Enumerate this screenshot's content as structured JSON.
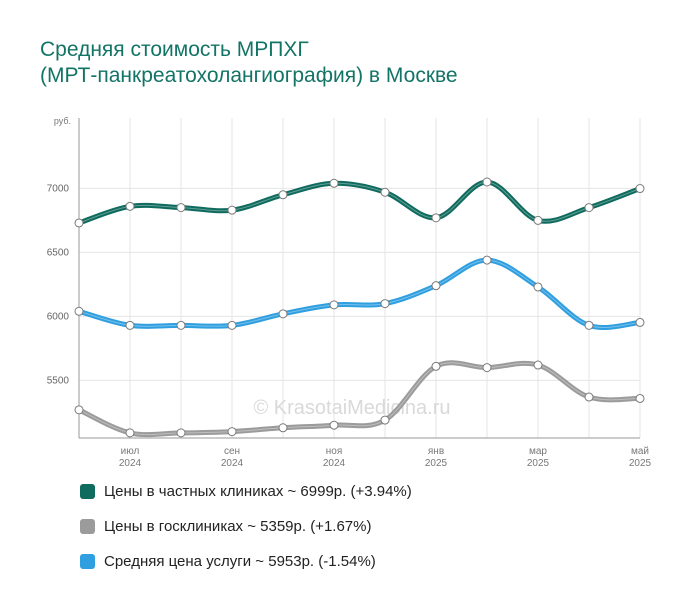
{
  "header": {
    "title_line1": "Средняя стоимость МРПХГ",
    "title_line2": "(МРТ-панкреатохолангиография) в Москве",
    "title_color": "#137466"
  },
  "watermark": "© KrasotaiMedicina.ru",
  "legend": [
    {
      "label": "Цены в частных клиниках ~ 6999р. (+3.94%)",
      "color": "#0f6b5e"
    },
    {
      "label": "Цены в госклиниках ~ 5359р. (+1.67%)",
      "color": "#9b9b9b"
    },
    {
      "label": "Средняя цена услуги ~ 5953р. (-1.54%)",
      "color": "#2f9fe0"
    }
  ],
  "chart_data": {
    "type": "line",
    "ylabel": "руб.",
    "ylim": [
      5050,
      7550
    ],
    "yticks": [
      5500,
      6000,
      6500,
      7000
    ],
    "grid": true,
    "x": [
      "2024-06",
      "2024-07",
      "2024-08",
      "2024-09",
      "2024-10",
      "2024-11",
      "2024-12",
      "2025-01",
      "2025-02",
      "2025-03",
      "2025-04",
      "2025-05"
    ],
    "xticks": [
      {
        "index": 1,
        "month": "июл",
        "year": "2024"
      },
      {
        "index": 3,
        "month": "сен",
        "year": "2024"
      },
      {
        "index": 5,
        "month": "ноя",
        "year": "2024"
      },
      {
        "index": 7,
        "month": "янв",
        "year": "2025"
      },
      {
        "index": 9,
        "month": "мар",
        "year": "2025"
      },
      {
        "index": 11,
        "month": "май",
        "year": "2025"
      }
    ],
    "series": [
      {
        "name": "Цены в частных клиниках",
        "color": "#0f6b5e",
        "values": [
          6730,
          6860,
          6850,
          6830,
          6950,
          7040,
          6970,
          6770,
          7050,
          6750,
          6850,
          6999
        ]
      },
      {
        "name": "Цены в госклиниках",
        "color": "#9b9b9b",
        "values": [
          5270,
          5090,
          5090,
          5100,
          5130,
          5150,
          5190,
          5610,
          5600,
          5620,
          5370,
          5359
        ]
      },
      {
        "name": "Средняя цена услуги",
        "color": "#2f9fe0",
        "values": [
          6040,
          5930,
          5930,
          5930,
          6020,
          6090,
          6100,
          6240,
          6440,
          6230,
          5930,
          5953
        ]
      }
    ]
  }
}
